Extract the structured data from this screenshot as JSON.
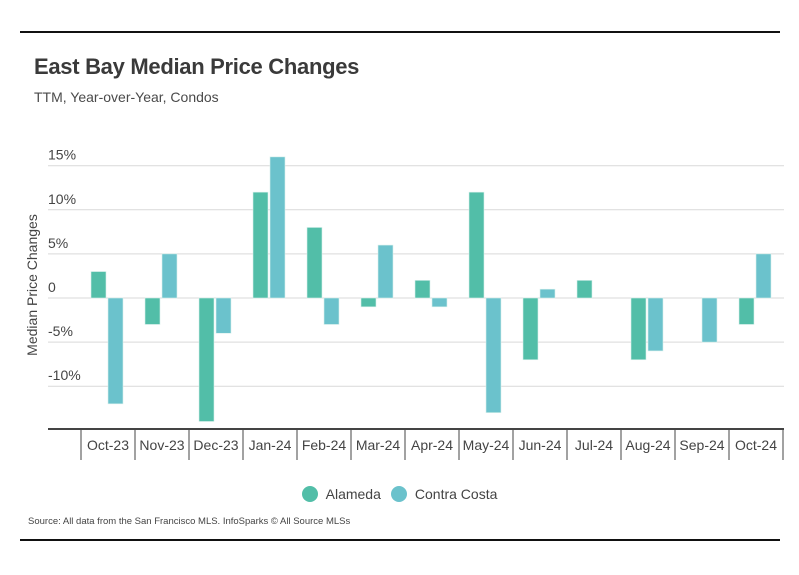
{
  "header": {
    "title": "East Bay Median Price Changes",
    "subtitle": "TTM, Year-over-Year, Condos"
  },
  "footer": {
    "source": "Source:  All data from the San Francisco MLS. InfoSparks © All Source MLSs"
  },
  "colors": {
    "alameda": "#52BEA8",
    "contra_costa": "#6BC2CC",
    "grid": "#d9d9d9",
    "axis": "#444444"
  },
  "chart_data": {
    "type": "bar",
    "title": "East Bay Median Price Changes",
    "subtitle": "TTM, Year-over-Year, Condos",
    "xlabel": "",
    "ylabel": "Median Price Changes",
    "ylim": [
      -15,
      17
    ],
    "yticks": [
      15,
      10,
      5,
      0,
      -5,
      -10
    ],
    "ytick_labels": [
      "15%",
      "10%",
      "5%",
      "0",
      "-5%",
      "-10%"
    ],
    "grid": true,
    "legend_position": "bottom-center",
    "categories": [
      "Oct-23",
      "Nov-23",
      "Dec-23",
      "Jan-24",
      "Feb-24",
      "Mar-24",
      "Apr-24",
      "May-24",
      "Jun-24",
      "Jul-24",
      "Aug-24",
      "Sep-24",
      "Oct-24"
    ],
    "series": [
      {
        "name": "Alameda",
        "values": [
          3,
          -3,
          -14,
          12,
          8,
          -1,
          2,
          12,
          -7,
          2,
          -7,
          0,
          -3
        ]
      },
      {
        "name": "Contra Costa",
        "values": [
          -12,
          5,
          -4,
          16,
          -3,
          6,
          -1,
          -13,
          1,
          0,
          -6,
          -5,
          5
        ]
      }
    ]
  }
}
